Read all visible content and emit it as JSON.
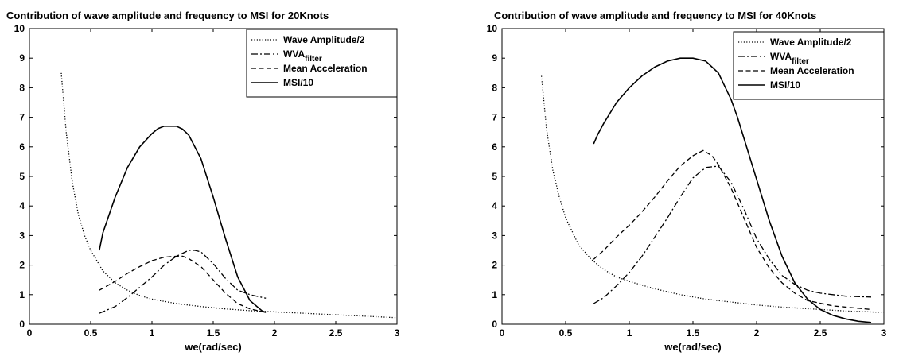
{
  "chart_data": [
    {
      "type": "line",
      "title": "Contribution of wave amplitude and frequency to MSI for 20Knots",
      "xlabel": "we(rad/sec)",
      "ylabel": "",
      "xlim": [
        0,
        3
      ],
      "ylim": [
        0,
        10
      ],
      "xticks": [
        "0",
        "0.5",
        "1",
        "1.5",
        "2",
        "2.5",
        "3"
      ],
      "yticks": [
        "0",
        "1",
        "2",
        "3",
        "4",
        "5",
        "6",
        "7",
        "8",
        "9",
        "10"
      ],
      "grid": false,
      "legend_position": "top-right",
      "series": [
        {
          "name": "Wave Amplitude/2",
          "sub": "",
          "style": "dotted",
          "x": [
            0.26,
            0.3,
            0.35,
            0.4,
            0.45,
            0.5,
            0.6,
            0.7,
            0.8,
            0.9,
            1.0,
            1.2,
            1.4,
            1.6,
            1.8,
            2.0,
            2.3,
            2.6,
            3.0
          ],
          "y": [
            8.5,
            6.5,
            4.8,
            3.7,
            3.0,
            2.5,
            1.8,
            1.4,
            1.15,
            0.97,
            0.85,
            0.7,
            0.6,
            0.52,
            0.46,
            0.42,
            0.36,
            0.3,
            0.22
          ]
        },
        {
          "name": "WVA",
          "sub": "filter",
          "style": "dashdot",
          "x": [
            0.57,
            0.7,
            0.8,
            0.9,
            1.0,
            1.1,
            1.2,
            1.3,
            1.35,
            1.4,
            1.5,
            1.6,
            1.7,
            1.8,
            1.93
          ],
          "y": [
            0.37,
            0.6,
            0.9,
            1.25,
            1.6,
            2.0,
            2.3,
            2.5,
            2.5,
            2.45,
            2.05,
            1.55,
            1.15,
            1.0,
            0.88
          ]
        },
        {
          "name": "Mean Acceleration",
          "sub": "",
          "style": "dashed",
          "x": [
            0.57,
            0.7,
            0.8,
            0.9,
            1.0,
            1.1,
            1.2,
            1.25,
            1.3,
            1.4,
            1.5,
            1.6,
            1.7,
            1.8,
            1.93
          ],
          "y": [
            1.15,
            1.45,
            1.72,
            1.95,
            2.15,
            2.27,
            2.3,
            2.3,
            2.22,
            1.95,
            1.5,
            1.05,
            0.7,
            0.52,
            0.4
          ]
        },
        {
          "name": "MSI/10",
          "sub": "",
          "style": "solid",
          "x": [
            0.57,
            0.6,
            0.7,
            0.8,
            0.9,
            1.0,
            1.05,
            1.1,
            1.15,
            1.2,
            1.25,
            1.3,
            1.4,
            1.5,
            1.6,
            1.7,
            1.8,
            1.9,
            1.93
          ],
          "y": [
            2.5,
            3.1,
            4.3,
            5.3,
            6.0,
            6.45,
            6.62,
            6.7,
            6.7,
            6.7,
            6.6,
            6.4,
            5.6,
            4.3,
            2.9,
            1.6,
            0.8,
            0.45,
            0.4
          ]
        }
      ]
    },
    {
      "type": "line",
      "title": "Contribution of wave amplitude and frequency to MSI for 40Knots",
      "xlabel": "we(rad/sec)",
      "ylabel": "",
      "xlim": [
        0,
        3
      ],
      "ylim": [
        0,
        10
      ],
      "xticks": [
        "0",
        "0.5",
        "1",
        "1.5",
        "2",
        "2.5",
        "3"
      ],
      "yticks": [
        "0",
        "1",
        "2",
        "3",
        "4",
        "5",
        "6",
        "7",
        "8",
        "9",
        "10"
      ],
      "grid": false,
      "legend_position": "top-right",
      "series": [
        {
          "name": "Wave Amplitude/2",
          "sub": "",
          "style": "dotted",
          "x": [
            0.31,
            0.35,
            0.4,
            0.45,
            0.5,
            0.6,
            0.7,
            0.8,
            0.9,
            1.0,
            1.2,
            1.4,
            1.6,
            1.8,
            2.0,
            2.2,
            2.5,
            2.7,
            3.0
          ],
          "y": [
            8.4,
            6.6,
            5.2,
            4.3,
            3.6,
            2.7,
            2.2,
            1.85,
            1.6,
            1.45,
            1.2,
            1.0,
            0.85,
            0.75,
            0.65,
            0.58,
            0.5,
            0.45,
            0.4
          ]
        },
        {
          "name": "WVA",
          "sub": "filter",
          "style": "dashdot",
          "x": [
            0.72,
            0.8,
            0.9,
            1.0,
            1.1,
            1.2,
            1.3,
            1.4,
            1.5,
            1.6,
            1.7,
            1.8,
            1.9,
            2.0,
            2.1,
            2.2,
            2.3,
            2.4,
            2.5,
            2.7,
            2.9
          ],
          "y": [
            0.7,
            0.9,
            1.3,
            1.75,
            2.3,
            2.95,
            3.6,
            4.3,
            4.95,
            5.3,
            5.35,
            4.8,
            3.9,
            2.9,
            2.2,
            1.65,
            1.35,
            1.15,
            1.05,
            0.95,
            0.92
          ]
        },
        {
          "name": "Mean Acceleration",
          "sub": "",
          "style": "dashed",
          "x": [
            0.72,
            0.8,
            0.9,
            1.0,
            1.1,
            1.2,
            1.3,
            1.4,
            1.5,
            1.58,
            1.65,
            1.7,
            1.8,
            1.9,
            2.0,
            2.1,
            2.2,
            2.3,
            2.4,
            2.6,
            2.9
          ],
          "y": [
            2.2,
            2.5,
            2.95,
            3.35,
            3.8,
            4.3,
            4.85,
            5.35,
            5.7,
            5.88,
            5.7,
            5.4,
            4.6,
            3.6,
            2.6,
            1.9,
            1.4,
            1.05,
            0.8,
            0.62,
            0.5
          ]
        },
        {
          "name": "MSI/10",
          "sub": "",
          "style": "solid",
          "x": [
            0.72,
            0.75,
            0.8,
            0.9,
            1.0,
            1.1,
            1.2,
            1.3,
            1.4,
            1.5,
            1.6,
            1.7,
            1.8,
            1.85,
            1.9,
            2.0,
            2.1,
            2.2,
            2.3,
            2.4,
            2.5,
            2.6,
            2.7,
            2.8,
            2.9
          ],
          "y": [
            6.1,
            6.4,
            6.8,
            7.5,
            8.0,
            8.4,
            8.7,
            8.9,
            9.0,
            9.0,
            8.9,
            8.5,
            7.6,
            7.0,
            6.3,
            4.9,
            3.5,
            2.3,
            1.4,
            0.85,
            0.5,
            0.3,
            0.18,
            0.1,
            0.06
          ]
        }
      ]
    }
  ]
}
